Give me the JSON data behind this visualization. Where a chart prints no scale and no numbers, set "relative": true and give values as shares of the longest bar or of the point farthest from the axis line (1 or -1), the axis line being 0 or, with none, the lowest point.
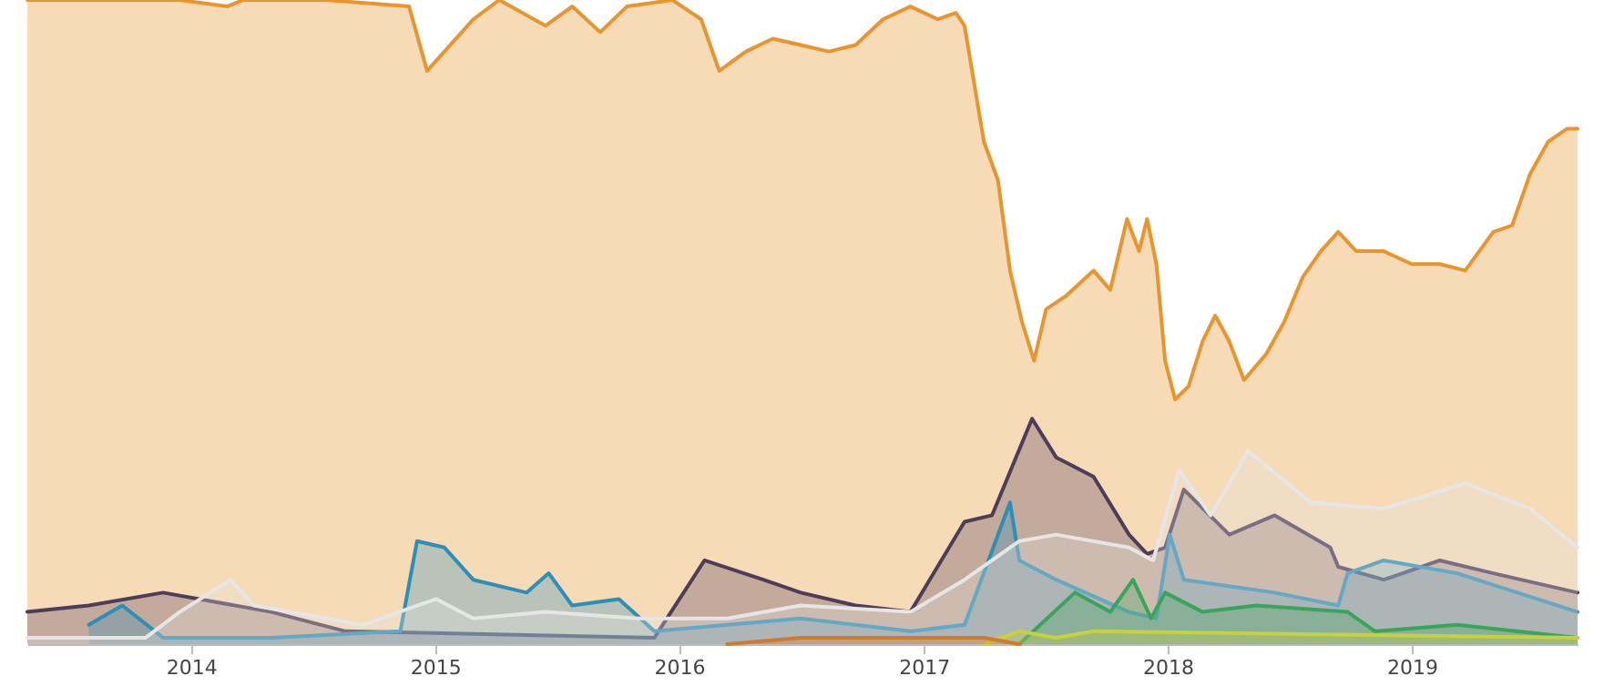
{
  "chart_data": {
    "type": "area",
    "relative": true,
    "legend": false,
    "xlim": [
      "2013-05-01",
      "2019-09-06"
    ],
    "xticks": [
      "2014",
      "2015",
      "2016",
      "2017",
      "2018",
      "2019"
    ],
    "series": [
      {
        "color": "#e8952f",
        "x": [
          "2013-05-01",
          "2013-12-15",
          "2014-02-24",
          "2014-03-20",
          "2014-07-22",
          "2014-11-23",
          "2014-12-20",
          "2015-01-15",
          "2015-02-27",
          "2015-04-07",
          "2015-06-15",
          "2015-07-25",
          "2015-09-05",
          "2015-10-15",
          "2015-12-22",
          "2016-02-03",
          "2016-03-01",
          "2016-04-10",
          "2016-05-20",
          "2016-07-01",
          "2016-08-12",
          "2016-09-21",
          "2016-11-01",
          "2016-12-12",
          "2017-01-22",
          "2017-02-18",
          "2017-03-03",
          "2017-04-01",
          "2017-04-22",
          "2017-05-10",
          "2017-05-28",
          "2017-06-15",
          "2017-07-03",
          "2017-08-01",
          "2017-09-12",
          "2017-10-07",
          "2017-11-01",
          "2017-11-19",
          "2017-12-01",
          "2017-12-15",
          "2017-12-28",
          "2018-01-12",
          "2018-02-01",
          "2018-02-22",
          "2018-03-13",
          "2018-04-03",
          "2018-04-25",
          "2018-05-28",
          "2018-06-24",
          "2018-07-22",
          "2018-08-18",
          "2018-09-13",
          "2018-10-10",
          "2018-11-20",
          "2019-01-01",
          "2019-02-12",
          "2019-03-22",
          "2019-05-03",
          "2019-05-31",
          "2019-06-27",
          "2019-07-24",
          "2019-08-21",
          "2019-09-06"
        ],
        "values": [
          1.0,
          1.0,
          0.99,
          1.0,
          1.0,
          0.99,
          0.89,
          0.92,
          0.97,
          1.0,
          0.96,
          0.99,
          0.95,
          0.99,
          1.0,
          0.97,
          0.89,
          0.92,
          0.94,
          0.93,
          0.92,
          0.93,
          0.97,
          0.99,
          0.97,
          0.98,
          0.96,
          0.78,
          0.72,
          0.58,
          0.5,
          0.44,
          0.52,
          0.54,
          0.58,
          0.55,
          0.66,
          0.61,
          0.66,
          0.59,
          0.44,
          0.38,
          0.4,
          0.47,
          0.51,
          0.47,
          0.41,
          0.45,
          0.5,
          0.57,
          0.61,
          0.64,
          0.61,
          0.61,
          0.59,
          0.59,
          0.58,
          0.64,
          0.65,
          0.73,
          0.78,
          0.8,
          0.8
        ]
      },
      {
        "color": "#4d3c5a",
        "x": [
          "2013-05-01",
          "2013-08-01",
          "2013-11-20",
          "2014-05-01",
          "2014-08-20",
          "2015-11-25",
          "2016-02-08",
          "2016-05-06",
          "2016-07-01",
          "2016-09-21",
          "2016-12-12",
          "2017-03-03",
          "2017-04-13",
          "2017-06-12",
          "2017-07-18",
          "2017-09-12",
          "2017-11-04",
          "2017-12-01",
          "2017-12-28",
          "2018-01-25",
          "2018-04-03",
          "2018-06-10",
          "2018-09-01",
          "2018-09-13",
          "2018-11-20",
          "2019-02-12",
          "2019-05-03",
          "2019-09-06"
        ],
        "values": [
          0.05,
          0.06,
          0.08,
          0.05,
          0.02,
          0.01,
          0.13,
          0.1,
          0.08,
          0.06,
          0.05,
          0.19,
          0.2,
          0.35,
          0.29,
          0.26,
          0.17,
          0.14,
          0.15,
          0.24,
          0.17,
          0.2,
          0.15,
          0.12,
          0.1,
          0.13,
          0.11,
          0.08
        ]
      },
      {
        "color": "#2c8fb8",
        "x": [
          "2013-08-01",
          "2013-09-20",
          "2013-11-20",
          "2014-05-01",
          "2014-11-10",
          "2014-12-05",
          "2015-01-15",
          "2015-02-27",
          "2015-05-18",
          "2015-06-20",
          "2015-07-25",
          "2015-10-03",
          "2015-11-25",
          "2016-03-13",
          "2016-07-01",
          "2016-12-12",
          "2017-03-03",
          "2017-05-10",
          "2017-05-24",
          "2017-07-18",
          "2017-11-04",
          "2017-12-15",
          "2018-01-04",
          "2018-01-25",
          "2018-06-10",
          "2018-09-13",
          "2018-09-27",
          "2018-11-20",
          "2019-03-10",
          "2019-09-06"
        ],
        "values": [
          0.03,
          0.06,
          0.01,
          0.01,
          0.02,
          0.16,
          0.15,
          0.1,
          0.08,
          0.11,
          0.06,
          0.07,
          0.02,
          0.03,
          0.04,
          0.02,
          0.03,
          0.22,
          0.13,
          0.1,
          0.05,
          0.04,
          0.17,
          0.1,
          0.08,
          0.06,
          0.11,
          0.13,
          0.11,
          0.05
        ]
      },
      {
        "color": "#e6e6e6",
        "x": [
          "2013-05-01",
          "2013-10-25",
          "2013-12-15",
          "2014-03-01",
          "2014-04-05",
          "2014-09-15",
          "2014-12-05",
          "2015-01-03",
          "2015-02-27",
          "2015-06-15",
          "2015-11-01",
          "2016-03-13",
          "2016-07-01",
          "2016-12-12",
          "2017-03-03",
          "2017-05-24",
          "2017-07-18",
          "2017-11-04",
          "2017-12-10",
          "2018-01-18",
          "2018-03-06",
          "2018-05-01",
          "2018-08-03",
          "2018-11-20",
          "2019-03-22",
          "2019-06-27",
          "2019-09-06"
        ],
        "values": [
          0.01,
          0.01,
          0.05,
          0.1,
          0.06,
          0.03,
          0.06,
          0.07,
          0.04,
          0.05,
          0.04,
          0.04,
          0.06,
          0.05,
          0.1,
          0.16,
          0.17,
          0.15,
          0.13,
          0.27,
          0.2,
          0.3,
          0.22,
          0.21,
          0.25,
          0.21,
          0.15
        ]
      },
      {
        "color": "#3aa55a",
        "x": [
          "2017-05-24",
          "2017-08-15",
          "2017-10-07",
          "2017-11-10",
          "2017-12-07",
          "2017-12-28",
          "2018-02-22",
          "2018-05-13",
          "2018-09-27",
          "2018-11-07",
          "2019-03-10",
          "2019-09-06"
        ],
        "values": [
          0.0,
          0.08,
          0.05,
          0.1,
          0.04,
          0.08,
          0.05,
          0.06,
          0.05,
          0.02,
          0.03,
          0.01
        ]
      },
      {
        "color": "#c8d040",
        "x": [
          "2017-04-01",
          "2017-05-24",
          "2017-07-18",
          "2017-09-12",
          "2019-09-06"
        ],
        "values": [
          0.0,
          0.02,
          0.01,
          0.02,
          0.01
        ]
      },
      {
        "color": "#d27a2c",
        "x": [
          "2016-03-13",
          "2016-07-01",
          "2016-12-12",
          "2017-04-01",
          "2017-05-24"
        ],
        "values": [
          0.0,
          0.01,
          0.01,
          0.01,
          0.0
        ]
      }
    ]
  }
}
